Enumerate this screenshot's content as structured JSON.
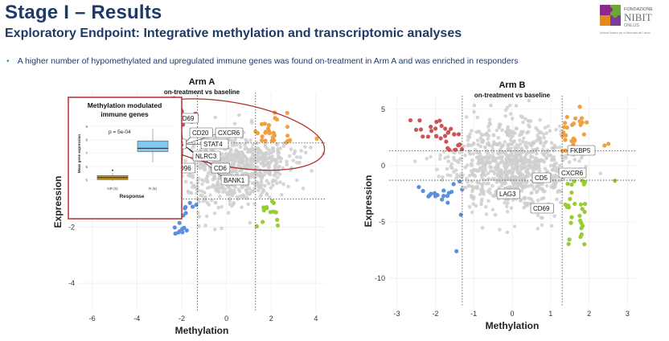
{
  "header": {
    "title": "Stage I – Results",
    "subtitle": "Exploratory Endpoint: Integrative methylation and transcriptomic analyses",
    "bullet": "A higher number of hypomethylated and upregulated immune genes was found on-treatment in Arm A and was enriched in responders"
  },
  "logo": {
    "line1": "FONDAZIONE",
    "line2": "NIBIT",
    "line3": "ONLUS",
    "tagline": "Network Italiano per la Bioterapia dei Tumori"
  },
  "colors": {
    "title": "#1f3a66",
    "grey": "#cfcfcf",
    "red": "#cc5555",
    "orange": "#f0a040",
    "blue": "#5b8fe0",
    "green": "#99cc33",
    "inset_border": "#b03030"
  },
  "chart_data": [
    {
      "type": "scatter",
      "title": "Arm A",
      "subtitle": "on-treatment vs baseline",
      "xlabel": "Methylation",
      "ylabel": "Expression",
      "xlim": [
        -6.6,
        4.4
      ],
      "ylim": [
        -5.0,
        2.8
      ],
      "xticks": [
        -6,
        -4,
        -2,
        0,
        2,
        4
      ],
      "yticks": [
        -2,
        -4
      ],
      "thresholds": {
        "x": [
          -1.3,
          1.3
        ],
        "y": [
          1.0,
          -1.0
        ]
      },
      "gene_labels": [
        "CD69",
        "CD20",
        "CXCR6",
        "STAT4",
        "NLRC3",
        "CD6",
        "BANK1",
        "D96",
        "S"
      ],
      "annotation_ellipse": true
    },
    {
      "type": "boxplot",
      "title": "Methylation modulated immune genes",
      "xlabel": "Response",
      "ylabel": "Mean gene expression",
      "categories": [
        "NR (6)",
        "R (6)"
      ],
      "pvalue": "p = 5e-04",
      "yticks": [
        "9",
        "8",
        "7",
        "6",
        "5"
      ],
      "values": [
        {
          "name": "NR (6)",
          "q1": 5.0,
          "median": 5.15,
          "q3": 5.3,
          "min": 4.9,
          "max": 5.5
        },
        {
          "name": "R (6)",
          "q1": 7.1,
          "median": 7.35,
          "q3": 7.9,
          "min": 6.3,
          "max": 8.8
        }
      ],
      "colors": [
        "#c99a20",
        "#7fc8ef"
      ]
    },
    {
      "type": "scatter",
      "title": "Arm B",
      "subtitle": "on-treatment vs baseline",
      "xlabel": "Methylation",
      "ylabel": "Expression",
      "xlim": [
        -3.2,
        3.2
      ],
      "ylim": [
        -12.5,
        6.2
      ],
      "xticks": [
        -3,
        -2,
        -1,
        0,
        1,
        2,
        3
      ],
      "yticks": [
        5,
        0,
        -5,
        -10
      ],
      "thresholds": {
        "x": [
          -1.3,
          1.3
        ],
        "y": [
          1.3,
          -1.3
        ]
      },
      "gene_labels": [
        "FKBP5",
        "CD5",
        "CXCR6",
        "LAG3",
        "CD69"
      ]
    }
  ]
}
